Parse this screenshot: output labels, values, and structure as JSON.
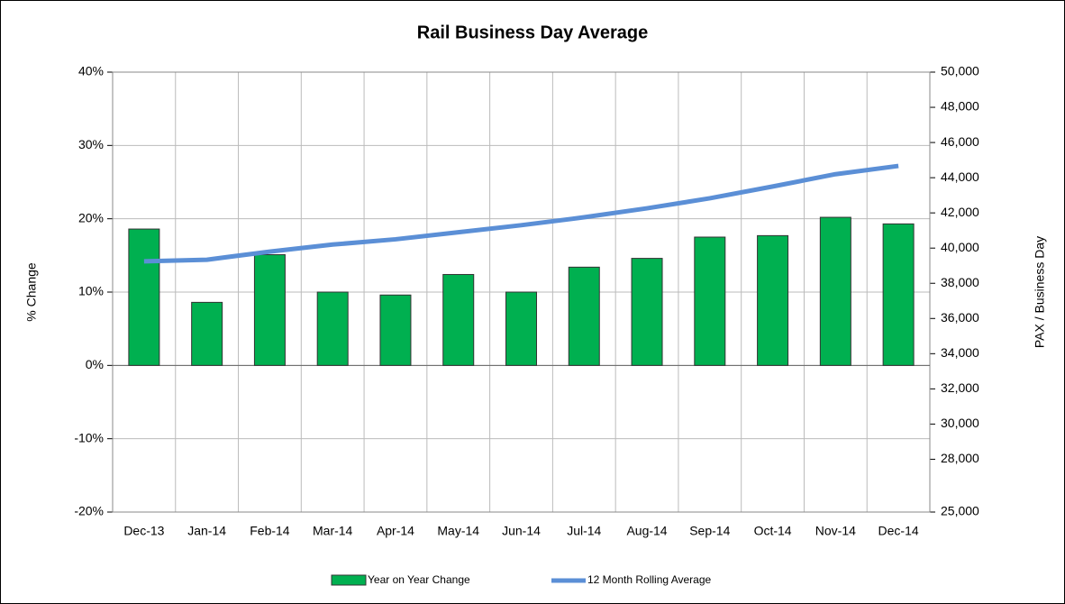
{
  "chart_data": {
    "type": "bar",
    "title": "Rail Business Day Average",
    "y_label": "% Change",
    "y2_label": "PAX / Business Day",
    "categories": [
      "Dec-13",
      "Jan-14",
      "Feb-14",
      "Mar-14",
      "Apr-14",
      "May-14",
      "Jun-14",
      "Jul-14",
      "Aug-14",
      "Sep-14",
      "Oct-14",
      "Nov-14",
      "Dec-14"
    ],
    "series": [
      {
        "name": "Year on Year Change",
        "type": "bar",
        "color": "#00b050",
        "values": [
          18.6,
          8.6,
          15.1,
          10.0,
          9.6,
          12.4,
          10.0,
          13.4,
          14.6,
          17.5,
          17.7,
          20.2,
          19.3
        ]
      },
      {
        "name": "12 Month Rolling Average",
        "type": "line",
        "axis": "y2",
        "color": "#5b8fd6",
        "values": [
          39250,
          39340,
          39800,
          40200,
          40500,
          40900,
          41300,
          41750,
          42260,
          42830,
          43500,
          44200,
          44670
        ]
      }
    ],
    "ylim": [
      -20,
      40
    ],
    "yticks": [
      {
        "value": -20,
        "label": "-20%"
      },
      {
        "value": -10,
        "label": "-10%"
      },
      {
        "value": 0,
        "label": "0%"
      },
      {
        "value": 10,
        "label": "10%"
      },
      {
        "value": 20,
        "label": "20%"
      },
      {
        "value": 30,
        "label": "30%"
      },
      {
        "value": 40,
        "label": "40%"
      }
    ],
    "y2lim": [
      25000,
      50000
    ],
    "y2ticks": [
      {
        "value": 25000,
        "label": "25,000"
      },
      {
        "value": 28000,
        "label": "28,000"
      },
      {
        "value": 30000,
        "label": "30,000"
      },
      {
        "value": 32000,
        "label": "32,000"
      },
      {
        "value": 34000,
        "label": "34,000"
      },
      {
        "value": 36000,
        "label": "36,000"
      },
      {
        "value": 38000,
        "label": "38,000"
      },
      {
        "value": 40000,
        "label": "40,000"
      },
      {
        "value": 42000,
        "label": "42,000"
      },
      {
        "value": 44000,
        "label": "44,000"
      },
      {
        "value": 46000,
        "label": "46,000"
      },
      {
        "value": 48000,
        "label": "48,000"
      },
      {
        "value": 50000,
        "label": "50,000"
      }
    ],
    "grid": true,
    "legend": "bottom"
  }
}
